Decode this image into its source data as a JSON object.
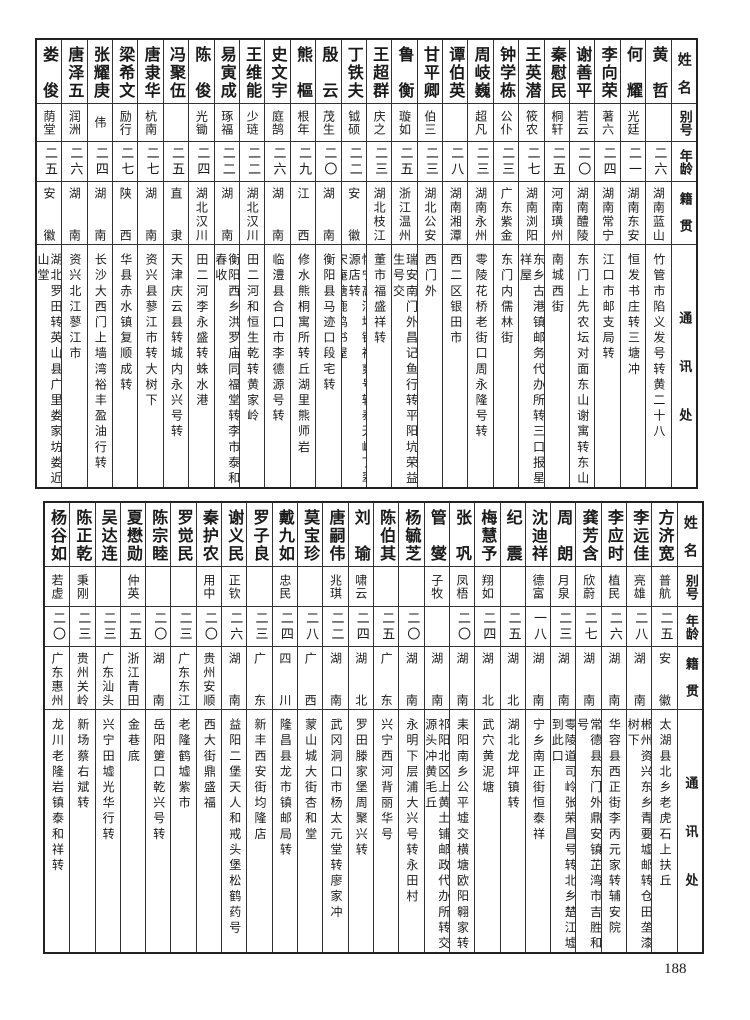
{
  "header": {
    "name": "姓名",
    "alias": "别号",
    "age": "年龄",
    "origin": "籍贯",
    "address": "通讯处"
  },
  "top_table": {
    "people": [
      {
        "name": "黄哲",
        "alias": "",
        "age": "二六",
        "origin": "湖南蓝山",
        "address": "竹管市陷义发号转黄二十八"
      },
      {
        "name": "何耀",
        "alias": "光廷",
        "age": "二一",
        "origin": "湖南东安",
        "address": "恒发书庄转三塘冲"
      },
      {
        "name": "李向荣",
        "alias": "著六",
        "age": "二四",
        "origin": "湖南常宁",
        "address": "江口市邮支局转"
      },
      {
        "name": "谢善平",
        "alias": "若云",
        "age": "二〇",
        "origin": "湖南醴陵",
        "address": "东门上先农坛对面东山谢寓转东山"
      },
      {
        "name": "秦慰民",
        "alias": "桐轩",
        "age": "二五",
        "origin": "河南璜州",
        "address": "南城西街"
      },
      {
        "name": "王英潜",
        "alias": "筱农",
        "age": "二七",
        "origin": "湖南浏阳",
        "address": "东乡古港镇邮务代办所转三口报星祥屋"
      },
      {
        "name": "钟学栋",
        "alias": "公仆",
        "age": "二三",
        "origin": "广东紫金",
        "address": "东门内儒林街"
      },
      {
        "name": "周岐巍",
        "alias": "超凡",
        "age": "二三",
        "origin": "湖南永州",
        "address": "零陵花桥老街口周永隆号转"
      },
      {
        "name": "谭伯英",
        "alias": "",
        "age": "二八",
        "origin": "湖南湘潭",
        "address": "西二区银田市"
      },
      {
        "name": "甘平卿",
        "alias": "伯三",
        "age": "二三",
        "origin": "湖北公安",
        "address": "西门外"
      },
      {
        "name": "鲁衡",
        "alias": "璇如",
        "age": "二五",
        "origin": "浙江温州",
        "address": "瑞安南门外昌记鱼行转平阳坑荣益生号交"
      },
      {
        "name": "王超群",
        "alias": "庆之",
        "age": "二三",
        "origin": "湖北枝江",
        "address": "董市福盛祥转"
      },
      {
        "name": "丁铁夫",
        "alias": "钺硕",
        "age": "二二",
        "origin": "安徽",
        "address": "怀宁高河埠镇裕爽号转泰天岭丁翠源店转\n宋庵塘鹿鸣书屋"
      },
      {
        "name": "殷云",
        "alias": "茂生",
        "age": "二〇",
        "origin": "湖南",
        "address": "衡阳县马迹口段宅转"
      },
      {
        "name": "熊樞",
        "alias": "根年",
        "age": "二九",
        "origin": "江西",
        "address": "修水熊桐寓所转丘湖里熊师岩"
      },
      {
        "name": "史文宇",
        "alias": "庭鹄",
        "age": "二六",
        "origin": "湖南",
        "address": "临澧县合口市李德源号转"
      },
      {
        "name": "王维能",
        "alias": "少琏",
        "age": "二二",
        "origin": "湖北汉川",
        "address": "田二河和恒生乾转黄家岭"
      },
      {
        "name": "易寅成",
        "alias": "琢福",
        "age": "二二",
        "origin": "湖南",
        "address": "衡阳西乡洪罗庙同福堂转李市泰和春收"
      },
      {
        "name": "陈俊",
        "alias": "光锄",
        "age": "二四",
        "origin": "湖北汉川",
        "address": "田二河李永盛转蛛水港"
      },
      {
        "name": "冯聚伍",
        "alias": "",
        "age": "二五",
        "origin": "直隶",
        "address": "天津庆云县转城内永兴号转"
      },
      {
        "name": "唐隶华",
        "alias": "杭南",
        "age": "二七",
        "origin": "湖南",
        "address": "资兴县蓼江市转大树下"
      },
      {
        "name": "梁希文",
        "alias": "励行",
        "age": "二七",
        "origin": "陕西",
        "address": "华县赤水镇复顺成转"
      },
      {
        "name": "张耀庚",
        "alias": "伟",
        "age": "二四",
        "origin": "湖南",
        "address": "长沙大西门上墙湾裕丰盈油行转"
      },
      {
        "name": "唐泽五",
        "alias": "润洲",
        "age": "二六",
        "origin": "湖南",
        "address": "资兴北江蓼江市"
      },
      {
        "name": "娄俊",
        "alias": "荫堂",
        "age": "二五",
        "origin": "安徽",
        "address": "湖北罗田转英山县广里娄家坊娄近山堂"
      }
    ]
  },
  "bottom_table": {
    "people": [
      {
        "name": "方济宽",
        "alias": "普航",
        "age": "二五",
        "origin": "安徽",
        "address": "太湖县北乡老虎石上扶丘"
      },
      {
        "name": "李远佳",
        "alias": "亮雄",
        "age": "二八",
        "origin": "湖南",
        "address": "郴州资兴东乡青要墟邮转仓田垄漆树下"
      },
      {
        "name": "李应时",
        "alias": "植民",
        "age": "二六",
        "origin": "湖南",
        "address": "华容县西正街李丙元家转辅安院"
      },
      {
        "name": "龚芳含",
        "alias": "欣蔚",
        "age": "二七",
        "origin": "湖南",
        "address": "常德县东门外鼎安镇芷湾市吉胜和号"
      },
      {
        "name": "周朗",
        "alias": "月泉",
        "age": "二三",
        "origin": "湖南",
        "address": "零陵道司岭张荣昌号转北乡楚江墟到此口"
      },
      {
        "name": "沈迪祥",
        "alias": "德富",
        "age": "一八",
        "origin": "湖南",
        "address": "宁乡南正街恒泰祥"
      },
      {
        "name": "纪震",
        "alias": "",
        "age": "二五",
        "origin": "湖北",
        "address": "湖北龙坪镇转"
      },
      {
        "name": "梅慧予",
        "alias": "翔如",
        "age": "二四",
        "origin": "湖北",
        "address": "武穴黄泥塘"
      },
      {
        "name": "张巩",
        "alias": "凤梧",
        "age": "二〇",
        "origin": "湖南",
        "address": "耒阳南乡公平墟交横塘欧阳翱家转"
      },
      {
        "name": "管燮",
        "alias": "子牧",
        "age": "",
        "origin": "湖南",
        "address": "祁阳北区上黄土铺邮政代办所转交\n源头冲黄毛丘"
      },
      {
        "name": "杨毓芝",
        "alias": "",
        "age": "二〇",
        "origin": "湖南",
        "address": "永明下层浦大兴号转永田村"
      },
      {
        "name": "陈伯其",
        "alias": "",
        "age": "二五",
        "origin": "广东",
        "address": "兴宁西河背丽华号"
      },
      {
        "name": "刘瑜",
        "alias": "啸云",
        "age": "二四",
        "origin": "湖北",
        "address": "罗田滕家堡周聚兴转"
      },
      {
        "name": "唐嗣伟",
        "alias": "兆琪",
        "age": "二二",
        "origin": "湖南",
        "address": "武冈洞口市杨太元堂转廖家冲"
      },
      {
        "name": "莫宝珍",
        "alias": "",
        "age": "二八",
        "origin": "广西",
        "address": "蒙山城大街杏和堂"
      },
      {
        "name": "戴九如",
        "alias": "忠民",
        "age": "二四",
        "origin": "四川",
        "address": "隆昌县龙市镇邮局转"
      },
      {
        "name": "罗子良",
        "alias": "",
        "age": "二三",
        "origin": "广东",
        "address": "新丰西安街均隆店"
      },
      {
        "name": "谢义民",
        "alias": "正钦",
        "age": "二六",
        "origin": "湖南",
        "address": "益阳二堡天人和戒头堡松鹤药号"
      },
      {
        "name": "秦护农",
        "alias": "用中",
        "age": "二〇",
        "origin": "贵州安顺",
        "address": "西大街鼎盛福"
      },
      {
        "name": "罗觉民",
        "alias": "",
        "age": "二三",
        "origin": "广东东江",
        "address": "老隆鹤墟紫市"
      },
      {
        "name": "陈宗睦",
        "alias": "",
        "age": "二〇",
        "origin": "湖南",
        "address": "岳阳筻口乾兴号转"
      },
      {
        "name": "夏懋勋",
        "alias": "仲英",
        "age": "二五",
        "origin": "浙江青田",
        "address": "金巷底"
      },
      {
        "name": "吴达连",
        "alias": "",
        "age": "二三",
        "origin": "广东汕头",
        "address": "兴宁田墟光华行转"
      },
      {
        "name": "陈正乾",
        "alias": "秉刚",
        "age": "二三",
        "origin": "贵州关岭",
        "address": "新场蔡右斌转"
      },
      {
        "name": "杨谷如",
        "alias": "若虚",
        "age": "二〇",
        "origin": "广东惠州",
        "address": "龙川老隆岩镇泰和祥转"
      }
    ]
  },
  "page_number": "188"
}
